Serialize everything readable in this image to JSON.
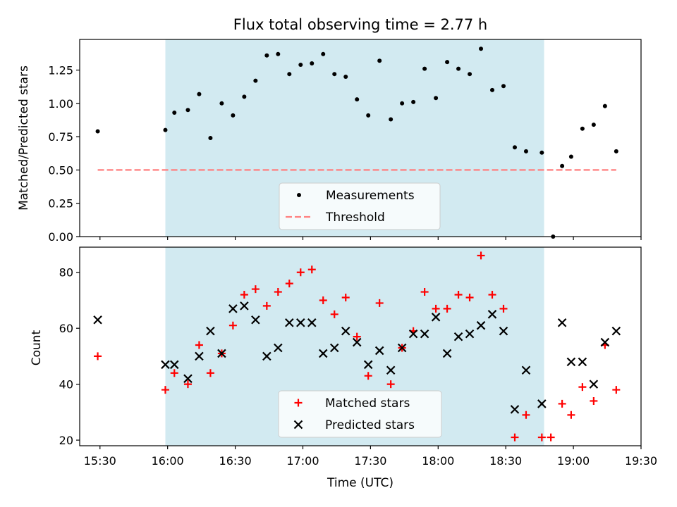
{
  "chart_data": [
    {
      "type": "scatter",
      "title": "Flux total observing time = 2.77 h",
      "ylabel": "Matched/Predicted stars",
      "xlabel": "",
      "xlim": [
        "15:21",
        "19:30"
      ],
      "ylim": [
        0,
        1.48
      ],
      "yticks": [
        "0.00",
        "0.25",
        "0.50",
        "0.75",
        "1.00",
        "1.25"
      ],
      "shaded_region": {
        "x_start": "15:59",
        "x_end": "18:47",
        "color": "#add8e6"
      },
      "legend_position": "lower-center",
      "legend": [
        "Measurements",
        "Threshold"
      ],
      "series": [
        {
          "name": "Measurements",
          "color": "#000000",
          "marker": "dot",
          "points": [
            [
              "15:29",
              0.79
            ],
            [
              "15:59",
              0.8
            ],
            [
              "16:03",
              0.93
            ],
            [
              "16:09",
              0.95
            ],
            [
              "16:14",
              1.07
            ],
            [
              "16:19",
              0.74
            ],
            [
              "16:24",
              1.0
            ],
            [
              "16:29",
              0.91
            ],
            [
              "16:34",
              1.05
            ],
            [
              "16:39",
              1.17
            ],
            [
              "16:44",
              1.36
            ],
            [
              "16:49",
              1.37
            ],
            [
              "16:54",
              1.22
            ],
            [
              "16:59",
              1.29
            ],
            [
              "17:04",
              1.3
            ],
            [
              "17:09",
              1.37
            ],
            [
              "17:14",
              1.22
            ],
            [
              "17:19",
              1.2
            ],
            [
              "17:24",
              1.03
            ],
            [
              "17:29",
              0.91
            ],
            [
              "17:34",
              1.32
            ],
            [
              "17:39",
              0.88
            ],
            [
              "17:44",
              1.0
            ],
            [
              "17:49",
              1.01
            ],
            [
              "17:54",
              1.26
            ],
            [
              "17:59",
              1.04
            ],
            [
              "18:04",
              1.31
            ],
            [
              "18:09",
              1.26
            ],
            [
              "18:14",
              1.22
            ],
            [
              "18:19",
              1.41
            ],
            [
              "18:24",
              1.1
            ],
            [
              "18:29",
              1.13
            ],
            [
              "18:34",
              0.67
            ],
            [
              "18:39",
              0.64
            ],
            [
              "18:46",
              0.63
            ],
            [
              "18:51",
              0.0
            ],
            [
              "18:55",
              0.53
            ],
            [
              "18:59",
              0.6
            ],
            [
              "19:04",
              0.81
            ],
            [
              "19:09",
              0.84
            ],
            [
              "19:14",
              0.98
            ],
            [
              "19:19",
              0.64
            ]
          ]
        },
        {
          "name": "Threshold",
          "color": "#ff7f7f",
          "style": "dashed",
          "points": [
            [
              "15:29",
              0.5
            ],
            [
              "19:19",
              0.5
            ]
          ]
        }
      ]
    },
    {
      "type": "scatter",
      "title": "",
      "ylabel": "Count",
      "xlabel": "Time (UTC)",
      "xlim": [
        "15:21",
        "19:30"
      ],
      "ylim": [
        18,
        89
      ],
      "yticks": [
        "20",
        "40",
        "60",
        "80"
      ],
      "xticks": [
        "15:30",
        "16:00",
        "16:30",
        "17:00",
        "17:30",
        "18:00",
        "18:30",
        "19:00",
        "19:30"
      ],
      "shaded_region": {
        "x_start": "15:59",
        "x_end": "18:47",
        "color": "#add8e6"
      },
      "legend_position": "lower-center",
      "legend": [
        "Matched stars",
        "Predicted stars"
      ],
      "series": [
        {
          "name": "Matched stars",
          "color": "#ff0000",
          "marker": "plus",
          "points": [
            [
              "15:29",
              50
            ],
            [
              "15:59",
              38
            ],
            [
              "16:03",
              44
            ],
            [
              "16:09",
              40
            ],
            [
              "16:14",
              54
            ],
            [
              "16:19",
              44
            ],
            [
              "16:24",
              51
            ],
            [
              "16:29",
              61
            ],
            [
              "16:34",
              72
            ],
            [
              "16:39",
              74
            ],
            [
              "16:44",
              68
            ],
            [
              "16:49",
              73
            ],
            [
              "16:54",
              76
            ],
            [
              "16:59",
              80
            ],
            [
              "17:04",
              81
            ],
            [
              "17:09",
              70
            ],
            [
              "17:14",
              65
            ],
            [
              "17:19",
              71
            ],
            [
              "17:24",
              57
            ],
            [
              "17:29",
              43
            ],
            [
              "17:34",
              69
            ],
            [
              "17:39",
              40
            ],
            [
              "17:44",
              53
            ],
            [
              "17:49",
              59
            ],
            [
              "17:54",
              73
            ],
            [
              "17:59",
              67
            ],
            [
              "18:04",
              67
            ],
            [
              "18:09",
              72
            ],
            [
              "18:14",
              71
            ],
            [
              "18:19",
              86
            ],
            [
              "18:24",
              72
            ],
            [
              "18:29",
              67
            ],
            [
              "18:34",
              21
            ],
            [
              "18:39",
              29
            ],
            [
              "18:46",
              21
            ],
            [
              "18:50",
              21
            ],
            [
              "18:55",
              33
            ],
            [
              "18:59",
              29
            ],
            [
              "19:04",
              39
            ],
            [
              "19:09",
              34
            ],
            [
              "19:14",
              54
            ],
            [
              "19:19",
              38
            ]
          ]
        },
        {
          "name": "Predicted stars",
          "color": "#000000",
          "marker": "x",
          "points": [
            [
              "15:29",
              63
            ],
            [
              "15:59",
              47
            ],
            [
              "16:03",
              47
            ],
            [
              "16:09",
              42
            ],
            [
              "16:14",
              50
            ],
            [
              "16:19",
              59
            ],
            [
              "16:24",
              51
            ],
            [
              "16:29",
              67
            ],
            [
              "16:34",
              68
            ],
            [
              "16:39",
              63
            ],
            [
              "16:44",
              50
            ],
            [
              "16:49",
              53
            ],
            [
              "16:54",
              62
            ],
            [
              "16:59",
              62
            ],
            [
              "17:04",
              62
            ],
            [
              "17:09",
              51
            ],
            [
              "17:14",
              53
            ],
            [
              "17:19",
              59
            ],
            [
              "17:24",
              55
            ],
            [
              "17:29",
              47
            ],
            [
              "17:34",
              52
            ],
            [
              "17:39",
              45
            ],
            [
              "17:44",
              53
            ],
            [
              "17:49",
              58
            ],
            [
              "17:54",
              58
            ],
            [
              "17:59",
              64
            ],
            [
              "18:04",
              51
            ],
            [
              "18:09",
              57
            ],
            [
              "18:14",
              58
            ],
            [
              "18:19",
              61
            ],
            [
              "18:24",
              65
            ],
            [
              "18:29",
              59
            ],
            [
              "18:34",
              31
            ],
            [
              "18:39",
              45
            ],
            [
              "18:46",
              33
            ],
            [
              "18:55",
              62
            ],
            [
              "18:59",
              48
            ],
            [
              "19:04",
              48
            ],
            [
              "19:09",
              40
            ],
            [
              "19:14",
              55
            ],
            [
              "19:19",
              59
            ]
          ]
        }
      ]
    }
  ]
}
